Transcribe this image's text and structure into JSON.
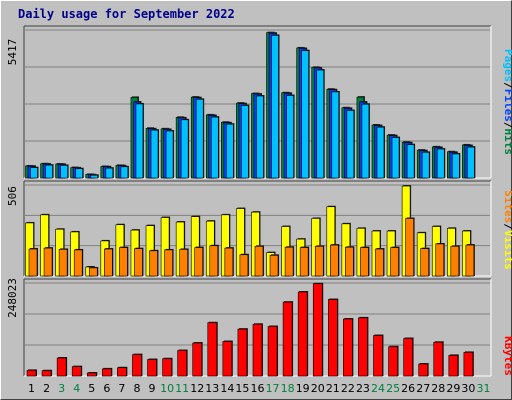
{
  "title": "Daily usage for September 2022",
  "chart_data": [
    {
      "type": "bar",
      "panel": "hits-files-pages",
      "ymax_label": "5417",
      "ymax": 5417,
      "categories": [
        "1",
        "2",
        "3",
        "4",
        "5",
        "6",
        "7",
        "8",
        "9",
        "10",
        "11",
        "12",
        "13",
        "14",
        "15",
        "16",
        "17",
        "18",
        "19",
        "20",
        "21",
        "22",
        "23",
        "24",
        "25",
        "26",
        "27",
        "28",
        "29",
        "30",
        "31"
      ],
      "series": [
        {
          "name": "Hits",
          "color": "#008040",
          "values": [
            440,
            520,
            510,
            380,
            130,
            420,
            460,
            2950,
            1820,
            1800,
            2220,
            2960,
            2310,
            2040,
            2740,
            3090,
            5320,
            3120,
            4760,
            4050,
            3250,
            2570,
            2960,
            1940,
            1570,
            1310,
            1020,
            1140,
            960,
            1210,
            0
          ]
        },
        {
          "name": "Files",
          "color": "#0040ff",
          "values": [
            430,
            510,
            500,
            370,
            120,
            410,
            450,
            2780,
            1800,
            1780,
            2200,
            2940,
            2290,
            2020,
            2720,
            3070,
            5300,
            3100,
            4740,
            4030,
            3230,
            2550,
            2780,
            1920,
            1550,
            1290,
            1000,
            1120,
            940,
            1190,
            0
          ]
        },
        {
          "name": "Pages",
          "color": "#00c0ff",
          "values": [
            380,
            470,
            460,
            340,
            100,
            360,
            410,
            2710,
            1750,
            1720,
            2130,
            2880,
            2230,
            1970,
            2650,
            3000,
            5220,
            3020,
            4660,
            3950,
            3150,
            2470,
            2700,
            1860,
            1480,
            1220,
            940,
            1060,
            880,
            1130,
            0
          ]
        }
      ],
      "legend": [
        "Pages",
        "/",
        "Files",
        "/",
        "Hits"
      ],
      "legend_colors": [
        "#00c0ff",
        "#000000",
        "#0040ff",
        "#000000",
        "#008040"
      ]
    },
    {
      "type": "bar",
      "panel": "visits-sites",
      "ymax_label": "506",
      "ymax": 506,
      "categories": [
        "1",
        "2",
        "3",
        "4",
        "5",
        "6",
        "7",
        "8",
        "9",
        "10",
        "11",
        "12",
        "13",
        "14",
        "15",
        "16",
        "17",
        "18",
        "19",
        "20",
        "21",
        "22",
        "23",
        "24",
        "25",
        "26",
        "27",
        "28",
        "29",
        "30",
        "31"
      ],
      "series": [
        {
          "name": "Visits",
          "color": "#ffff00",
          "values": [
            295,
            340,
            260,
            245,
            50,
            195,
            285,
            255,
            280,
            325,
            300,
            330,
            305,
            340,
            375,
            355,
            130,
            275,
            205,
            320,
            385,
            290,
            265,
            250,
            250,
            500,
            240,
            275,
            265,
            250,
            0
          ]
        },
        {
          "name": "Sites",
          "color": "#ff8000",
          "values": [
            150,
            155,
            148,
            145,
            45,
            150,
            158,
            152,
            140,
            145,
            148,
            158,
            168,
            155,
            118,
            165,
            115,
            160,
            158,
            165,
            172,
            160,
            158,
            150,
            158,
            320,
            152,
            178,
            165,
            172,
            0
          ]
        }
      ],
      "legend": [
        "Sites",
        "/",
        "Visits"
      ],
      "legend_colors": [
        "#ff8000",
        "#000000",
        "#ffff00"
      ]
    },
    {
      "type": "bar",
      "panel": "kbytes",
      "ymax_label": "248023",
      "ymax": 248023,
      "categories": [
        "1",
        "2",
        "3",
        "4",
        "5",
        "6",
        "7",
        "8",
        "9",
        "10",
        "11",
        "12",
        "13",
        "14",
        "15",
        "16",
        "17",
        "18",
        "19",
        "20",
        "21",
        "22",
        "23",
        "24",
        "25",
        "26",
        "27",
        "28",
        "29",
        "30",
        "31"
      ],
      "series": [
        {
          "name": "KBytes",
          "color": "#ff0000",
          "values": [
            15000,
            14000,
            48000,
            25000,
            8000,
            19000,
            22000,
            57000,
            44000,
            46000,
            68000,
            88000,
            142000,
            92000,
            125000,
            138000,
            132000,
            197000,
            224000,
            246000,
            204000,
            152000,
            155000,
            108000,
            78000,
            100000,
            32000,
            90000,
            55000,
            63000,
            0
          ]
        }
      ],
      "legend": [
        "KBytes"
      ],
      "legend_colors": [
        "#ff0000"
      ]
    }
  ],
  "x_label_colors": {
    "weekday": "#000000",
    "weekend": "#008040"
  },
  "weekend_days": [
    3,
    4,
    10,
    11,
    17,
    18,
    24,
    25,
    31
  ]
}
